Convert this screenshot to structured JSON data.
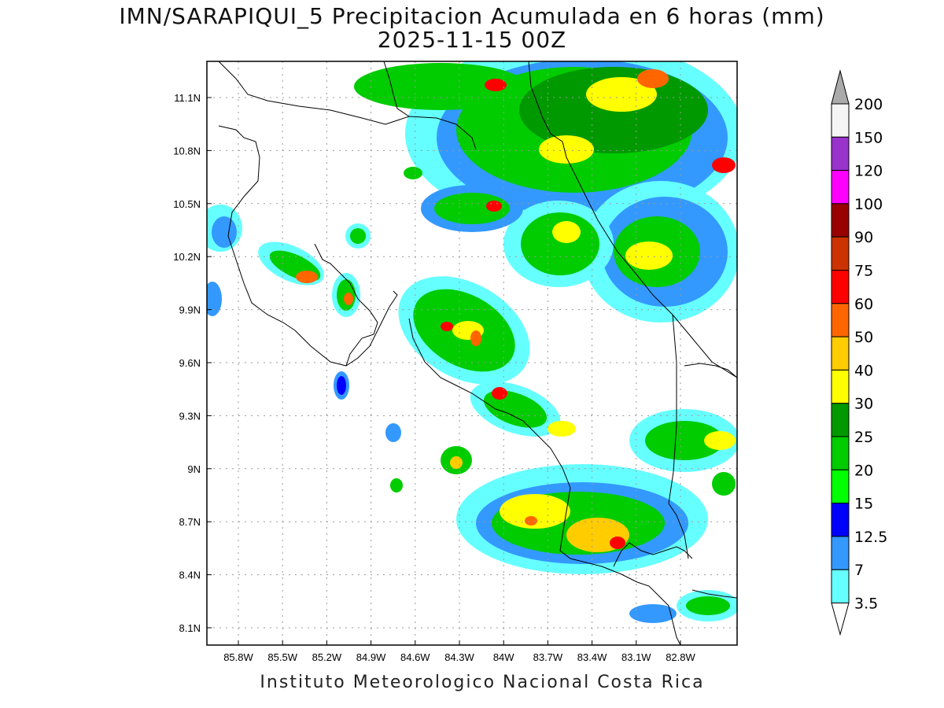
{
  "title_line1": "IMN/SARAPIQUI_5 Precipitacion Acumulada en 6 horas (mm)",
  "title_line2": "2025-11-15 00Z",
  "footer": "Instituto Meteorologico Nacional Costa Rica",
  "lon_ticks": [
    "85.8W",
    "85.5W",
    "85.2W",
    "84.9W",
    "84.6W",
    "84.3W",
    "84W",
    "83.7W",
    "83.4W",
    "83.1W",
    "82.8W"
  ],
  "lat_ticks": [
    "11.1N",
    "10.8N",
    "10.5N",
    "10.2N",
    "9.9N",
    "9.6N",
    "9.3N",
    "9N",
    "8.7N",
    "8.4N",
    "8.1N"
  ],
  "colorbar": {
    "levels": [
      "3.5",
      "7",
      "12.5",
      "15",
      "20",
      "25",
      "30",
      "40",
      "50",
      "60",
      "75",
      "90",
      "100",
      "120",
      "150",
      "200"
    ],
    "colors": [
      "#ffffff",
      "#66ffff",
      "#3399ff",
      "#0000ff",
      "#00ff00",
      "#00cc00",
      "#009900",
      "#ffff00",
      "#ffcc00",
      "#ff6600",
      "#ff0000",
      "#cc3300",
      "#990000",
      "#ff00ff",
      "#9933cc",
      "#f5f5f5",
      "#aaaaaa"
    ]
  }
}
